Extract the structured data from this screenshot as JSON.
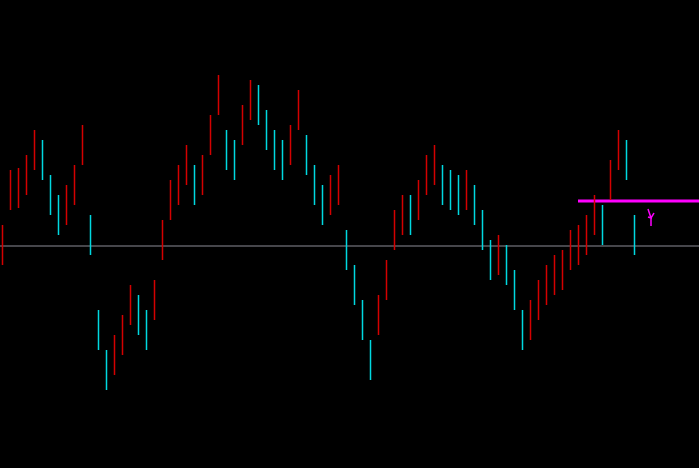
{
  "chart_data": {
    "type": "bars",
    "ylim": [
      0,
      468
    ],
    "up_color": "#d40000",
    "down_color": "#00d8e0",
    "high": [
      243,
      298,
      300,
      313,
      338,
      328,
      293,
      273,
      283,
      303,
      343,
      253,
      158,
      118,
      133,
      153,
      183,
      173,
      158,
      188,
      248,
      288,
      303,
      323,
      303,
      313,
      353,
      393,
      338,
      328,
      363,
      388,
      383,
      358,
      338,
      328,
      343,
      378,
      333,
      303,
      283,
      293,
      303,
      238,
      203,
      168,
      128,
      173,
      208,
      258,
      273,
      273,
      288,
      313,
      323,
      303,
      298,
      293,
      298,
      283,
      258,
      228,
      233,
      223,
      198,
      158,
      168,
      188,
      203,
      213,
      218,
      238,
      243,
      253,
      273,
      263,
      308,
      338,
      328,
      253
    ],
    "low": [
      203,
      258,
      260,
      273,
      298,
      288,
      253,
      233,
      243,
      263,
      303,
      213,
      118,
      78,
      93,
      113,
      143,
      133,
      118,
      148,
      208,
      248,
      263,
      283,
      263,
      273,
      313,
      353,
      298,
      288,
      323,
      348,
      343,
      318,
      298,
      288,
      303,
      338,
      293,
      263,
      243,
      253,
      263,
      198,
      163,
      128,
      88,
      133,
      168,
      218,
      233,
      233,
      248,
      273,
      283,
      263,
      258,
      253,
      258,
      243,
      218,
      188,
      193,
      183,
      158,
      118,
      128,
      148,
      163,
      173,
      178,
      198,
      203,
      213,
      233,
      223,
      268,
      298,
      288,
      213
    ],
    "levels": [
      {
        "value": 222,
        "color": "#8c8c96"
      },
      {
        "value": 267,
        "color": "#ff00ff",
        "from": 72
      }
    ]
  }
}
